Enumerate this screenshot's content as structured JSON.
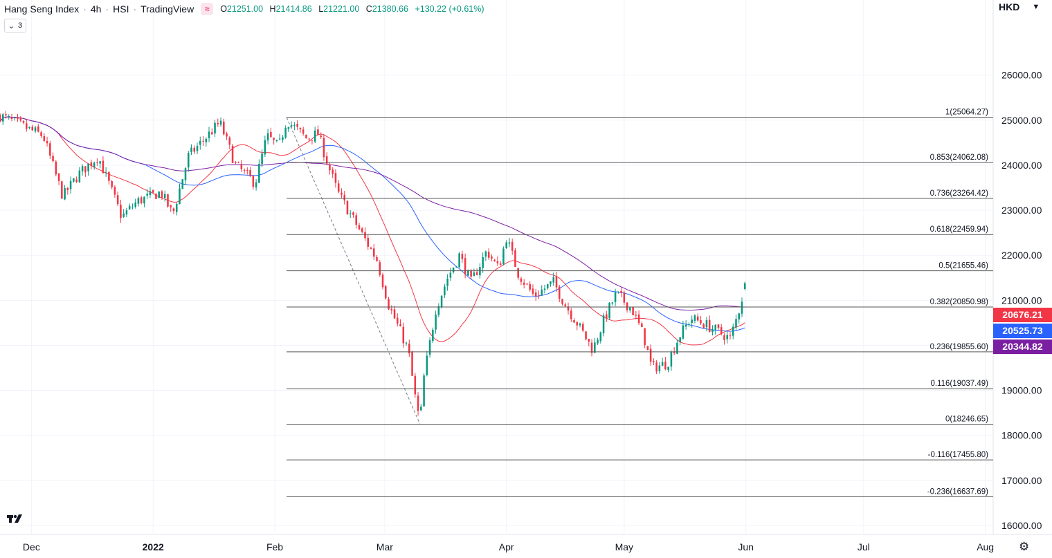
{
  "header": {
    "symbol_name": "Hang Seng Index",
    "interval": "4h",
    "ticker": "HSI",
    "source": "TradingView",
    "indicator_icon": "≈",
    "ohlc": {
      "o_label": "O",
      "o_value": "21251.00",
      "h_label": "H",
      "h_value": "21414.86",
      "l_label": "L",
      "l_value": "21221.00",
      "c_label": "C",
      "c_value": "21380.66",
      "change": "+130.22 (+0.61%)"
    },
    "collapse_count": "3",
    "currency": "HKD"
  },
  "colors": {
    "up": "#089981",
    "down": "#f23645",
    "ma_fast": "#f23645",
    "ma_mid": "#2962ff",
    "ma_slow": "#7b1fa2",
    "fib_line": "#555555",
    "tag_red": "#f23645",
    "tag_blue": "#2962ff",
    "tag_purple": "#7b1fa2"
  },
  "price_tags": [
    {
      "value": "20676.21",
      "color": "#f23645"
    },
    {
      "value": "20525.73",
      "color": "#2962ff"
    },
    {
      "value": "20344.82",
      "color": "#7b1fa2"
    }
  ],
  "chart_data": {
    "type": "candlestick",
    "title": "Hang Seng Index · 4h · HSI",
    "y_range": [
      15800,
      27300
    ],
    "y_ticks": [
      "16000.00",
      "17000.00",
      "18000.00",
      "19000.00",
      "20000.00",
      "21000.00",
      "22000.00",
      "23000.00",
      "24000.00",
      "25000.00",
      "26000.00"
    ],
    "x_range_days": [
      -8,
      245
    ],
    "x_ticks": [
      {
        "label": "Dec",
        "day": 0
      },
      {
        "label": "2022",
        "day": 31
      },
      {
        "label": "Feb",
        "day": 62
      },
      {
        "label": "Mar",
        "day": 90
      },
      {
        "label": "Apr",
        "day": 121
      },
      {
        "label": "May",
        "day": 151
      },
      {
        "label": "Jun",
        "day": 182
      },
      {
        "label": "Jul",
        "day": 212
      },
      {
        "label": "Aug",
        "day": 243
      }
    ],
    "anchor_points": [
      {
        "day": -8,
        "price": 25100
      },
      {
        "day": 3,
        "price": 24650
      },
      {
        "day": 8,
        "price": 23300
      },
      {
        "day": 12,
        "price": 23800
      },
      {
        "day": 17,
        "price": 24200
      },
      {
        "day": 23,
        "price": 22850
      },
      {
        "day": 27,
        "price": 23200
      },
      {
        "day": 33,
        "price": 23400
      },
      {
        "day": 36,
        "price": 22900
      },
      {
        "day": 40,
        "price": 24200
      },
      {
        "day": 48,
        "price": 24950
      },
      {
        "day": 52,
        "price": 24000
      },
      {
        "day": 57,
        "price": 23600
      },
      {
        "day": 60,
        "price": 24650
      },
      {
        "day": 63,
        "price": 24400
      },
      {
        "day": 65,
        "price": 25000
      },
      {
        "day": 70,
        "price": 24600
      },
      {
        "day": 73,
        "price": 24700
      },
      {
        "day": 76,
        "price": 23900
      },
      {
        "day": 78,
        "price": 23400
      },
      {
        "day": 84,
        "price": 22500
      },
      {
        "day": 88,
        "price": 21900
      },
      {
        "day": 91,
        "price": 20900
      },
      {
        "day": 96,
        "price": 19900
      },
      {
        "day": 98,
        "price": 18700
      },
      {
        "day": 99,
        "price": 18300
      },
      {
        "day": 100,
        "price": 19300
      },
      {
        "day": 103,
        "price": 20800
      },
      {
        "day": 106,
        "price": 21500
      },
      {
        "day": 109,
        "price": 22000
      },
      {
        "day": 112,
        "price": 21400
      },
      {
        "day": 116,
        "price": 22100
      },
      {
        "day": 119,
        "price": 21700
      },
      {
        "day": 121,
        "price": 22400
      },
      {
        "day": 124,
        "price": 21600
      },
      {
        "day": 128,
        "price": 21100
      },
      {
        "day": 133,
        "price": 21400
      },
      {
        "day": 136,
        "price": 20900
      },
      {
        "day": 139,
        "price": 20500
      },
      {
        "day": 143,
        "price": 19900
      },
      {
        "day": 146,
        "price": 20600
      },
      {
        "day": 149,
        "price": 21150
      },
      {
        "day": 153,
        "price": 20800
      },
      {
        "day": 156,
        "price": 20200
      },
      {
        "day": 158,
        "price": 19500
      },
      {
        "day": 162,
        "price": 19600
      },
      {
        "day": 165,
        "price": 20200
      },
      {
        "day": 168,
        "price": 20600
      },
      {
        "day": 171,
        "price": 20500
      },
      {
        "day": 175,
        "price": 20300
      },
      {
        "day": 178,
        "price": 20150
      },
      {
        "day": 180,
        "price": 20700
      },
      {
        "day": 182,
        "price": 21380
      }
    ],
    "moving_averages": [
      {
        "key": "ma_fast",
        "period": 20
      },
      {
        "key": "ma_mid",
        "period": 50
      },
      {
        "key": "ma_slow",
        "period": 100
      }
    ],
    "fibonacci": {
      "start_day": 65,
      "end_day": 246,
      "swing_high": {
        "day": 65,
        "price": 25064.27
      },
      "swing_low": {
        "day": 99,
        "price": 18246.65
      },
      "levels": [
        {
          "ratio": "1",
          "value": "25064.27",
          "price": 25064.27
        },
        {
          "ratio": "0.853",
          "value": "24062.08",
          "price": 24062.08
        },
        {
          "ratio": "0.736",
          "value": "23264.42",
          "price": 23264.42
        },
        {
          "ratio": "0.618",
          "value": "22459.94",
          "price": 22459.94
        },
        {
          "ratio": "0.5",
          "value": "21655.46",
          "price": 21655.46
        },
        {
          "ratio": "0.382",
          "value": "20850.98",
          "price": 20850.98
        },
        {
          "ratio": "0.236",
          "value": "19855.60",
          "price": 19855.6
        },
        {
          "ratio": "0.116",
          "value": "19037.49",
          "price": 19037.49
        },
        {
          "ratio": "0",
          "value": "18246.65",
          "price": 18246.65
        },
        {
          "ratio": "-0.116",
          "value": "17455.80",
          "price": 17455.8
        },
        {
          "ratio": "-0.236",
          "value": "16637.69",
          "price": 16637.69
        }
      ]
    },
    "grid": true
  }
}
